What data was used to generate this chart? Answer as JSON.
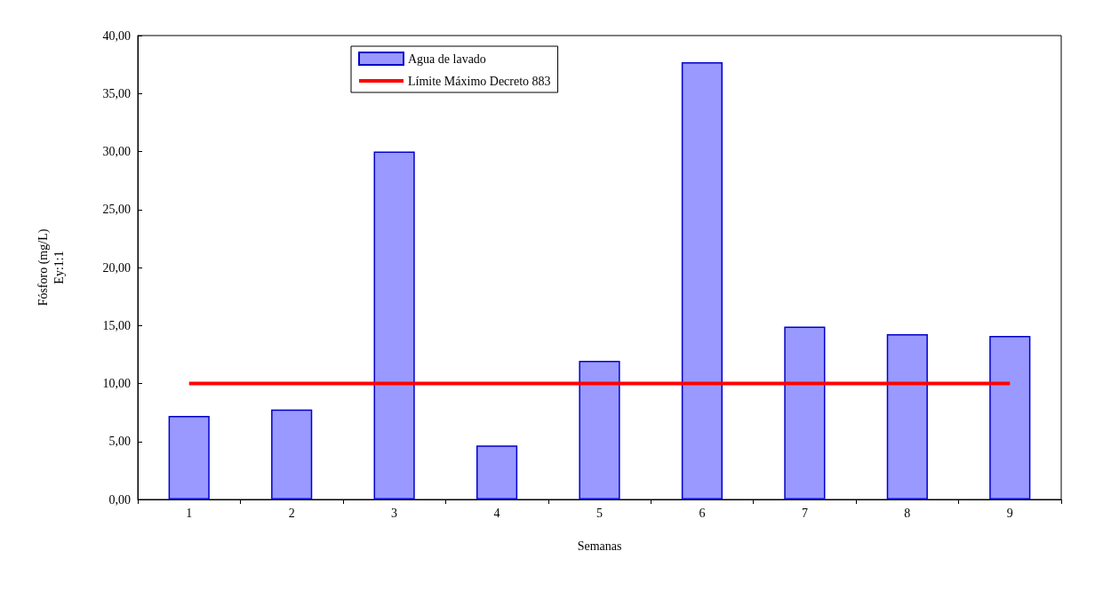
{
  "chart_data": {
    "type": "bar",
    "xlabel": "Semanas",
    "ylabel": "Fósforo (mg/L)\nEy:1:1",
    "categories": [
      "1",
      "2",
      "3",
      "4",
      "5",
      "6",
      "7",
      "8",
      "9"
    ],
    "series": [
      {
        "name": "Agua de lavado",
        "color": "#9999ff",
        "values": [
          7.2,
          7.75,
          30.0,
          4.65,
          11.95,
          37.7,
          14.9,
          14.25,
          14.1
        ]
      },
      {
        "name": "Límite Máximo Decreto 883",
        "type": "line",
        "color": "#ff0000",
        "values": [
          10,
          10,
          10,
          10,
          10,
          10,
          10,
          10,
          10
        ]
      }
    ],
    "ylim": [
      0,
      40
    ],
    "yticks": [
      {
        "value": 0,
        "label": "0,00"
      },
      {
        "value": 5,
        "label": "5,00"
      },
      {
        "value": 10,
        "label": "10,00"
      },
      {
        "value": 15,
        "label": "15,00"
      },
      {
        "value": 20,
        "label": "20,00"
      },
      {
        "value": 25,
        "label": "25,00"
      },
      {
        "value": 30,
        "label": "30,00"
      },
      {
        "value": 35,
        "label": "35,00"
      },
      {
        "value": 40,
        "label": "40,00"
      }
    ],
    "grid": false,
    "legend": "top left",
    "marker": "none",
    "line_style": "solid"
  }
}
